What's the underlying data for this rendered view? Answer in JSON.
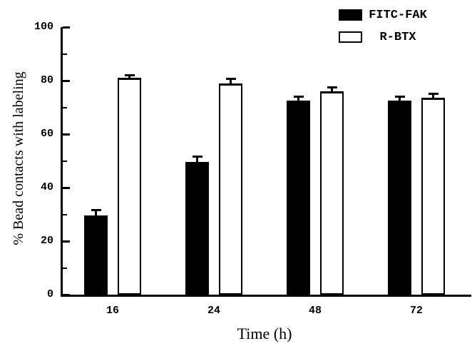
{
  "figure": {
    "x_axis_title": "Time (h)",
    "y_axis_title": "% Bead contacts with labeling"
  },
  "legend": {
    "entries": [
      {
        "label": "FITC-FAK",
        "fill": "#000000"
      },
      {
        "label": "R-BTX",
        "fill": "#ffffff"
      }
    ]
  },
  "colors": {
    "foreground": "#000000",
    "background": "#ffffff"
  },
  "chart_data": {
    "type": "bar",
    "title": "",
    "xlabel": "Time (h)",
    "ylabel": "% Bead contacts with labeling",
    "categories": [
      "16",
      "24",
      "48",
      "72"
    ],
    "series": [
      {
        "name": "FITC-FAK",
        "fill": "#000000",
        "style": "filled",
        "values": [
          29.5,
          49.5,
          72.5,
          72.5
        ],
        "errors": [
          2.5,
          2.5,
          2,
          2
        ]
      },
      {
        "name": "R-BTX",
        "fill": "#ffffff",
        "style": "open",
        "values": [
          81,
          79,
          76,
          73.5
        ],
        "errors": [
          1.5,
          2,
          2,
          2
        ]
      }
    ],
    "ylim": [
      0,
      100
    ],
    "yticks_major": [
      0,
      20,
      40,
      60,
      80,
      100
    ],
    "yticks_minor": [
      10,
      30,
      50,
      70,
      90
    ],
    "error_bars": true,
    "grid": false,
    "legend_position": "top-right"
  }
}
